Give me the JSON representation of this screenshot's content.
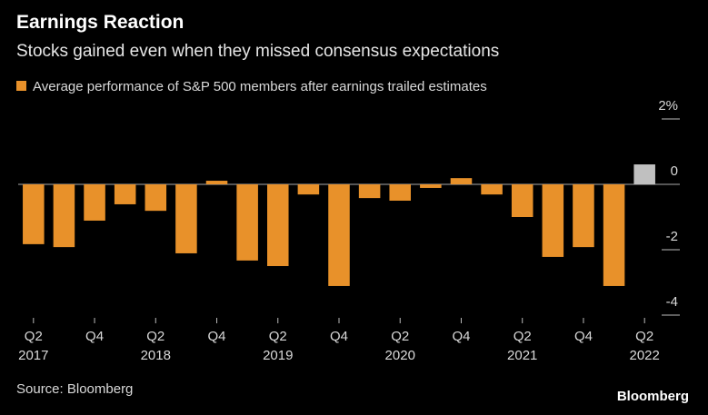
{
  "chart_data": {
    "type": "bar",
    "title": "Earnings Reaction",
    "subtitle": "Stocks gained even when they missed consensus expectations",
    "series": [
      {
        "name": "Average performance of S&P 500 members after earnings trailed estimates",
        "color": "#e8912a",
        "colors": [
          "#e8912a",
          "#e8912a",
          "#e8912a",
          "#e8912a",
          "#e8912a",
          "#e8912a",
          "#e8912a",
          "#e8912a",
          "#e8912a",
          "#e8912a",
          "#e8912a",
          "#e8912a",
          "#e8912a",
          "#e8912a",
          "#e8912a",
          "#e8912a",
          "#e8912a",
          "#e8912a",
          "#e8912a",
          "#e8912a",
          "#c0c0c0"
        ],
        "values": [
          -1.83,
          -1.92,
          -1.11,
          -0.61,
          -0.81,
          -2.11,
          0.11,
          -2.33,
          -2.5,
          -0.31,
          -3.11,
          -0.42,
          -0.5,
          -0.11,
          0.19,
          -0.31,
          -1.0,
          -2.22,
          -1.92,
          -3.11,
          0.61
        ]
      }
    ],
    "categories": [
      "Q2 2017",
      null,
      "Q4",
      null,
      "Q2 2018",
      null,
      "Q4",
      null,
      "Q2 2019",
      null,
      "Q4",
      null,
      "Q2 2020",
      null,
      "Q4",
      null,
      "Q2 2021",
      null,
      "Q4",
      null,
      "Q2 2022"
    ],
    "ylim": [
      -4.2,
      2.2
    ],
    "yticks": [
      {
        "value": 2,
        "label": "2%"
      },
      0,
      -2,
      -4
    ],
    "source": "Source: Bloomberg",
    "brand": "Bloomberg"
  }
}
